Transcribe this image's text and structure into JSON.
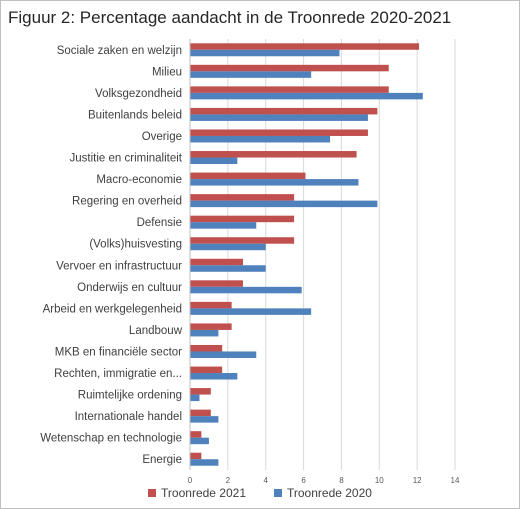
{
  "chart_data": {
    "type": "bar",
    "orientation": "horizontal",
    "title": "Figuur 2: Percentage aandacht in de Troonrede 2020-2021",
    "categories": [
      "Sociale zaken en welzijn",
      "Milieu",
      "Volksgezondheid",
      "Buitenlands beleid",
      "Overige",
      "Justitie en criminaliteit",
      "Macro-economie",
      "Regering en overheid",
      "Defensie",
      "(Volks)huisvesting",
      "Vervoer en infrastructuur",
      "Onderwijs en cultuur",
      "Arbeid en werkgelegenheid",
      "Landbouw",
      "MKB en financiële sector",
      "Rechten, immigratie en...",
      "Ruimtelijke ordening",
      "Internationale handel",
      "Wetenschap en technologie",
      "Energie"
    ],
    "series": [
      {
        "name": "Troonrede 2021",
        "color": "#c0504d",
        "values": [
          12.1,
          10.5,
          10.5,
          9.9,
          9.4,
          8.8,
          6.1,
          5.5,
          5.5,
          5.5,
          2.8,
          2.8,
          2.2,
          2.2,
          1.7,
          1.7,
          1.1,
          1.1,
          0.6,
          0.6
        ]
      },
      {
        "name": "Troonrede 2020",
        "color": "#4f81bd",
        "values": [
          7.9,
          6.4,
          12.3,
          9.4,
          7.4,
          2.5,
          8.9,
          9.9,
          3.5,
          4.0,
          4.0,
          5.9,
          6.4,
          1.5,
          3.5,
          2.5,
          0.5,
          1.5,
          1.0,
          1.5
        ]
      }
    ],
    "xlim": [
      0,
      14
    ],
    "xticks": [
      0,
      2,
      4,
      6,
      8,
      10,
      12,
      14
    ],
    "grid": true,
    "legend_position": "bottom"
  }
}
